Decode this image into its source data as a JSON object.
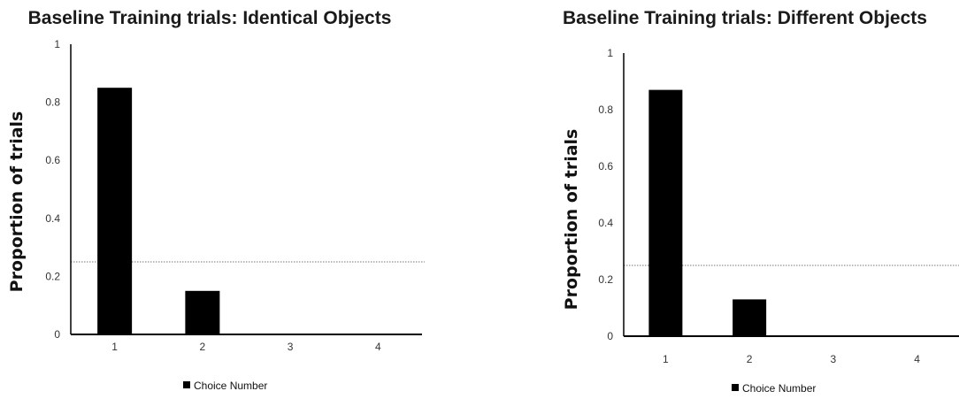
{
  "colors": {
    "bar": "#000000",
    "axis": "#000000",
    "reference_line": "#777777"
  },
  "chart_data": [
    {
      "type": "bar",
      "title": "Baseline Training trials: Identical Objects",
      "ylabel": "Proportion of trials",
      "xlabel": "",
      "categories": [
        "1",
        "2",
        "3",
        "4"
      ],
      "series": [
        {
          "name": "Choice Number",
          "values": [
            0.85,
            0.15,
            0,
            0
          ]
        }
      ],
      "ylim": [
        0,
        1
      ],
      "yticks": [
        "0",
        "0.2",
        "0.4",
        "0.6",
        "0.8",
        "1"
      ],
      "reference_line": 0.25,
      "legend_position": "bottom",
      "grid": false
    },
    {
      "type": "bar",
      "title": "Baseline Training trials: Different Objects",
      "ylabel": "Proportion of trials",
      "xlabel": "",
      "categories": [
        "1",
        "2",
        "3",
        "4"
      ],
      "series": [
        {
          "name": "Choice Number",
          "values": [
            0.87,
            0.13,
            0,
            0
          ]
        }
      ],
      "ylim": [
        0,
        1
      ],
      "yticks": [
        "0",
        "0.2",
        "0.4",
        "0.6",
        "0.8",
        "1"
      ],
      "reference_line": 0.25,
      "legend_position": "bottom",
      "grid": false
    }
  ]
}
